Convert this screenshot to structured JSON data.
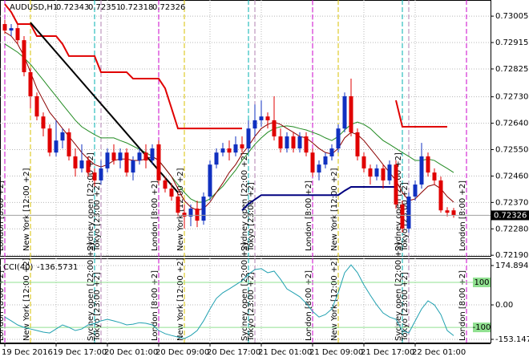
{
  "chart_data": [
    {
      "type": "candlestick",
      "title": "AUDUSD,H1",
      "categories": [
        "19 Dec 2016",
        null,
        null,
        null,
        null,
        null,
        null,
        null,
        "19 Dec 17:00",
        null,
        null,
        null,
        null,
        null,
        null,
        null,
        "20 Dec 01:00",
        null,
        null,
        null,
        null,
        null,
        null,
        null,
        "20 Dec 09:00",
        null,
        null,
        null,
        null,
        null,
        null,
        null,
        "20 Dec 17:00",
        null,
        null,
        null,
        null,
        null,
        null,
        null,
        "21 Dec 01:00",
        null,
        null,
        null,
        null,
        null,
        null,
        null,
        "21 Dec 09:00",
        null,
        null,
        null,
        null,
        null,
        null,
        null,
        "21 Dec 17:00",
        null,
        null,
        null,
        null,
        null,
        null,
        null,
        "22 Dec 01:00",
        null,
        null,
        null,
        null,
        null,
        null
      ],
      "open": [
        0.72978,
        0.72956,
        0.72964,
        0.72923,
        0.72814,
        0.72732,
        0.72663,
        0.72622,
        0.7254,
        0.72581,
        0.72609,
        0.72527,
        0.72486,
        0.72513,
        0.72472,
        0.72445,
        0.72486,
        0.7254,
        0.72513,
        0.7254,
        0.72472,
        0.72513,
        0.7254,
        0.72513,
        0.72568,
        0.72445,
        0.72417,
        0.7239,
        0.72335,
        0.72322,
        0.72349,
        0.72308,
        0.7239,
        0.72499,
        0.7254,
        0.72554,
        0.7254,
        0.72568,
        0.72554,
        0.72622,
        0.7265,
        0.72663,
        0.7265,
        0.72595,
        0.72554,
        0.72595,
        0.72554,
        0.72595,
        0.7254,
        0.72472,
        0.72499,
        0.72527,
        0.72554,
        0.72622,
        0.72732,
        0.72609,
        0.72527,
        0.72486,
        0.72458,
        0.72486,
        0.72445,
        0.72499,
        0.72363,
        0.72281,
        0.7239,
        0.72431,
        0.72527,
        0.72472,
        0.72445,
        0.72343,
        0.72343
      ],
      "high": [
        0.72992,
        0.72978,
        0.72978,
        0.72937,
        0.72828,
        0.72745,
        0.72677,
        0.72636,
        0.7265,
        0.72622,
        0.72622,
        0.72554,
        0.72568,
        0.72527,
        0.72486,
        0.72513,
        0.72554,
        0.72568,
        0.72554,
        0.72554,
        0.72527,
        0.72554,
        0.72568,
        0.72568,
        0.72581,
        0.72458,
        0.72436,
        0.72404,
        0.72363,
        0.72363,
        0.72376,
        0.72404,
        0.72513,
        0.72554,
        0.72573,
        0.72581,
        0.72595,
        0.72595,
        0.7265,
        0.72704,
        0.72718,
        0.72677,
        0.72732,
        0.72622,
        0.72609,
        0.72609,
        0.72609,
        0.72609,
        0.72554,
        0.72513,
        0.7254,
        0.72568,
        0.72636,
        0.72745,
        0.72792,
        0.72622,
        0.7254,
        0.72499,
        0.72499,
        0.72499,
        0.72513,
        0.72513,
        0.72376,
        0.72404,
        0.72445,
        0.72573,
        0.7254,
        0.72486,
        0.72458,
        0.72354,
        0.72351
      ],
      "low": [
        0.72945,
        0.72937,
        0.7291,
        0.728,
        0.72691,
        0.7265,
        0.72595,
        0.72527,
        0.72527,
        0.72554,
        0.72513,
        0.72458,
        0.72472,
        0.72458,
        0.72425,
        0.72431,
        0.72472,
        0.72499,
        0.72486,
        0.72458,
        0.72445,
        0.72499,
        0.72486,
        0.72499,
        0.72431,
        0.72404,
        0.72376,
        0.72322,
        0.72281,
        0.72289,
        0.72286,
        0.72294,
        0.72376,
        0.72486,
        0.72527,
        0.72513,
        0.72527,
        0.7254,
        0.7254,
        0.72595,
        0.72628,
        0.72622,
        0.72581,
        0.7254,
        0.7254,
        0.7254,
        0.7254,
        0.72527,
        0.72458,
        0.72445,
        0.72486,
        0.72513,
        0.7254,
        0.72609,
        0.72595,
        0.72513,
        0.72472,
        0.72431,
        0.72445,
        0.72417,
        0.72431,
        0.72349,
        0.72267,
        0.72267,
        0.72376,
        0.72417,
        0.72458,
        0.72431,
        0.72335,
        0.72322,
        0.72318
      ],
      "close": [
        0.72956,
        0.72964,
        0.72923,
        0.72814,
        0.72732,
        0.72663,
        0.72622,
        0.7254,
        0.72581,
        0.72609,
        0.72527,
        0.72486,
        0.72513,
        0.72472,
        0.72445,
        0.72486,
        0.7254,
        0.72513,
        0.7254,
        0.72472,
        0.72513,
        0.7254,
        0.72513,
        0.72554,
        0.72445,
        0.72417,
        0.7239,
        0.72335,
        0.72322,
        0.72349,
        0.72308,
        0.7239,
        0.72499,
        0.7254,
        0.72554,
        0.7254,
        0.72568,
        0.72554,
        0.72622,
        0.7265,
        0.72663,
        0.7265,
        0.72595,
        0.72554,
        0.72595,
        0.72554,
        0.72595,
        0.7254,
        0.72472,
        0.72499,
        0.72527,
        0.72554,
        0.72622,
        0.72732,
        0.72609,
        0.72527,
        0.72486,
        0.72458,
        0.72486,
        0.72445,
        0.72499,
        0.72363,
        0.72281,
        0.7239,
        0.72431,
        0.72527,
        0.72472,
        0.72445,
        0.72343,
        0.72335,
        0.72326
      ],
      "up_color": "#1030c0",
      "down_color": "#e00000",
      "ylim": [
        0.72185,
        0.7306
      ],
      "yticks": [
        0.73005,
        0.72915,
        0.72825,
        {
          "value": 0.7273,
          "label": "0.72730"
        },
        {
          "value": 0.7264,
          "label": "0.72640"
        },
        {
          "value": 0.7255,
          "label": "0.72550"
        },
        {
          "value": 0.7246,
          "label": "0.72460"
        },
        {
          "value": 0.7237,
          "label": "0.72370"
        },
        {
          "value": 0.7228,
          "label": "0.72280"
        },
        {
          "value": 0.7219,
          "label": "0.72190"
        }
      ],
      "grid": true,
      "lines": [
        {
          "color": "#228b22",
          "width": 1,
          "values": [
            0.7291,
            0.72896,
            0.72882,
            0.72863,
            0.72841,
            0.72814,
            0.72787,
            0.72759,
            0.72732,
            0.72704,
            0.72677,
            0.7265,
            0.72628,
            0.72614,
            0.72601,
            0.7259,
            0.7259,
            0.7259,
            0.72581,
            0.72573,
            0.72562,
            0.72551,
            0.7254,
            0.72527,
            0.72513,
            0.72486,
            0.72458,
            0.72431,
            0.72404,
            0.72382,
            0.72371,
            0.72371,
            0.72382,
            0.72404,
            0.72425,
            0.72453,
            0.7248,
            0.72513,
            0.7254,
            0.72568,
            0.7259,
            0.72609,
            0.72622,
            0.72628,
            0.72631,
            0.72628,
            0.72622,
            0.72617,
            0.72609,
            0.72601,
            0.7259,
            0.72581,
            0.72595,
            0.72617,
            0.72636,
            0.72644,
            0.72636,
            0.72622,
            0.72601,
            0.72581,
            0.72568,
            0.72554,
            0.7254,
            0.72527,
            0.72513,
            0.72513,
            0.72518,
            0.72513,
            0.72499,
            0.72486,
            0.72472
          ]
        },
        {
          "color": "#8b0000",
          "width": 1,
          "values": [
            0.72951,
            0.72937,
            0.7291,
            0.72869,
            0.72814,
            0.72759,
            0.72718,
            0.72677,
            0.7265,
            0.72622,
            0.72595,
            0.72568,
            0.7254,
            0.72518,
            0.72499,
            0.72491,
            0.72499,
            0.72513,
            0.72518,
            0.72518,
            0.72513,
            0.72513,
            0.72518,
            0.72527,
            0.72513,
            0.72486,
            0.72458,
            0.72417,
            0.72376,
            0.72354,
            0.72343,
            0.72349,
            0.72371,
            0.72404,
            0.72436,
            0.72472,
            0.72499,
            0.72535,
            0.72562,
            0.72595,
            0.72622,
            0.72636,
            0.72644,
            0.72636,
            0.72622,
            0.72609,
            0.72595,
            0.7259,
            0.72573,
            0.72554,
            0.7254,
            0.72535,
            0.72554,
            0.7259,
            0.72609,
            0.72601,
            0.72581,
            0.72554,
            0.72527,
            0.72499,
            0.72472,
            0.72445,
            0.72404,
            0.72376,
            0.72382,
            0.72404,
            0.72425,
            0.72431,
            0.72417,
            0.7239,
            0.72371
          ]
        },
        {
          "color": "#e00000",
          "width": 2,
          "values": [
            0.73046,
            0.73019,
            0.72978,
            0.72978,
            0.72978,
            0.72937,
            0.72937,
            0.72937,
            0.72937,
            0.7291,
            0.72869,
            0.72869,
            0.72869,
            0.72869,
            0.72869,
            0.72814,
            0.72814,
            0.72814,
            0.72814,
            0.72814,
            0.72792,
            0.72792,
            0.72792,
            0.72792,
            0.72792,
            0.72759,
            0.72691,
            0.72622,
            0.72622,
            0.72622,
            0.72622,
            0.72622,
            0.72622,
            0.72622,
            0.72622,
            0.72622,
            0.72622,
            0.72622,
            null,
            null,
            null,
            null,
            null,
            null,
            null,
            null,
            null,
            null,
            null,
            null,
            null,
            null,
            null,
            null,
            null,
            null,
            null,
            null,
            null,
            null,
            null,
            0.72718,
            0.72628,
            0.72628,
            0.72628,
            0.72628,
            0.72628,
            0.72628,
            0.72628,
            0.72628,
            null
          ]
        },
        {
          "color": "#000080",
          "width": 2,
          "values": [
            null,
            null,
            null,
            null,
            null,
            null,
            null,
            null,
            null,
            null,
            null,
            null,
            null,
            null,
            null,
            null,
            null,
            null,
            null,
            null,
            null,
            null,
            null,
            null,
            null,
            null,
            null,
            null,
            null,
            null,
            null,
            null,
            null,
            null,
            null,
            null,
            null,
            0.72343,
            0.72365,
            0.7238,
            0.72395,
            0.72395,
            0.72395,
            0.72395,
            0.72395,
            0.72395,
            0.72395,
            0.72395,
            0.72395,
            0.72395,
            0.72395,
            0.72395,
            0.72395,
            0.7241,
            0.72423,
            0.72423,
            0.72423,
            0.72423,
            0.72423,
            0.72423,
            0.72423,
            0.72423,
            null,
            null,
            null,
            null,
            null,
            null,
            null,
            null,
            null
          ]
        }
      ],
      "trend_line": {
        "color": "#000000",
        "x": [
          4,
          27
        ],
        "values": [
          0.72983,
          0.72404
        ]
      },
      "sessions": [
        {
          "label": "London [8:00 +2]",
          "at": 0,
          "color": "#cc00cc"
        },
        {
          "label": "New York [12:00 +2]",
          "at": 4,
          "color": "#d8c000"
        },
        {
          "label": "Sydney open [22:00 +2]",
          "at": 14,
          "color": "#00b0b0"
        },
        {
          "label": "Tokyo [23:00 +2]",
          "at": 15,
          "color": "#b080b0"
        },
        {
          "label": "London [8:00 +2]",
          "at": 24,
          "color": "#cc00cc"
        },
        {
          "label": "New York [12:00 +2]",
          "at": 28,
          "color": "#d8c000"
        },
        {
          "label": "Sydney open [22:00 +2]",
          "at": 38,
          "color": "#00b0b0"
        },
        {
          "label": "Tokyo [23:00 +2]",
          "at": 39,
          "color": "#b080b0"
        },
        {
          "label": "London [8:00 +2]",
          "at": 48,
          "color": "#cc00cc"
        },
        {
          "label": "New York [12:00 +2]",
          "at": 52,
          "color": "#d8c000"
        },
        {
          "label": "Sydney open [22:00 +2]",
          "at": 62,
          "color": "#00b0b0"
        },
        {
          "label": "Tokyo [23:00 +2]",
          "at": 63,
          "color": "#b080b0"
        },
        {
          "label": "London [8:00 +2]",
          "at": 72,
          "color": "#cc00cc"
        }
      ]
    },
    {
      "type": "line",
      "title": "CCI(40)",
      "color": "#20a0b0",
      "values": [
        -54,
        -71,
        -89,
        -100,
        -107,
        -114,
        -121,
        -125,
        -107,
        -89,
        -100,
        -114,
        -107,
        -89,
        -82,
        -71,
        -64,
        -71,
        -79,
        -89,
        -86,
        -79,
        -82,
        -89,
        -114,
        -128,
        -136,
        -143,
        -150,
        -136,
        -114,
        -71,
        -18,
        29,
        54,
        71,
        89,
        107,
        136,
        157,
        161,
        143,
        150,
        114,
        71,
        54,
        36,
        7,
        -29,
        -54,
        -43,
        -18,
        54,
        143,
        178,
        143,
        89,
        43,
        0,
        -36,
        -54,
        -64,
        -114,
        -125,
        -71,
        -18,
        18,
        0,
        -43,
        -114,
        -136.5731
      ],
      "ylim": [
        -171,
        207
      ],
      "yticks": [
        174.894,
        {
          "value": 0,
          "label": "0.00"
        },
        -153.1471
      ],
      "grid": true,
      "levels": [
        100,
        -100
      ],
      "level_color": "#90e090"
    }
  ]
}
